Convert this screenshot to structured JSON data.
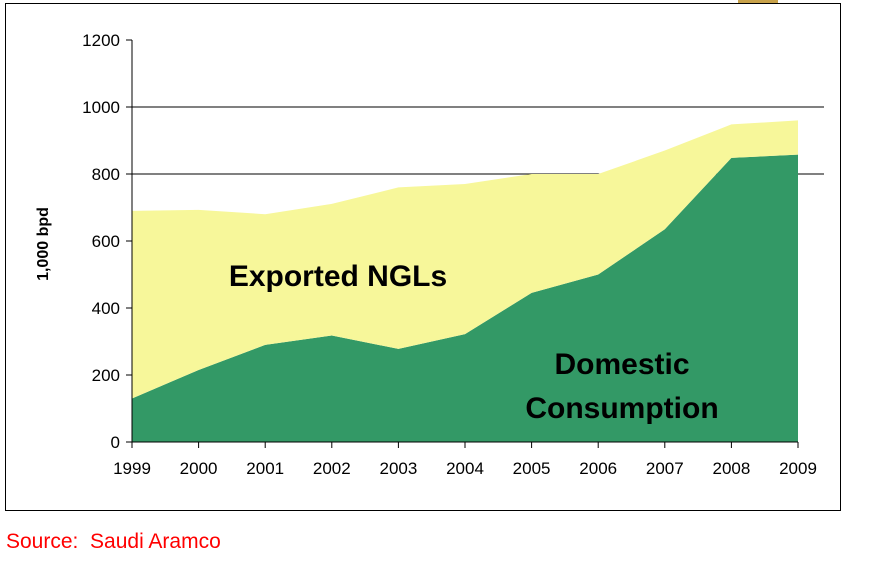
{
  "chart_data": {
    "type": "area",
    "stacked": true,
    "x": [
      1999,
      2000,
      2001,
      2002,
      2003,
      2004,
      2005,
      2006,
      2007,
      2008,
      2009
    ],
    "series": [
      {
        "name": "Domestic Consumption",
        "values": [
          130,
          215,
          290,
          318,
          278,
          322,
          445,
          500,
          635,
          848,
          858
        ],
        "color": "#339966"
      },
      {
        "name": "Exported NGLs",
        "values": [
          560,
          478,
          390,
          393,
          482,
          448,
          355,
          300,
          235,
          100,
          102
        ],
        "color": "#f7f79a"
      }
    ],
    "totals": [
      690,
      693,
      680,
      711,
      760,
      770,
      800,
      800,
      870,
      948,
      960
    ],
    "series_labels": {
      "exported": "Exported NGLs",
      "domestic_line1": "Domestic",
      "domestic_line2": "Consumption"
    },
    "ylabel": "1,000 bpd",
    "xlabel": "",
    "ylim": [
      0,
      1200
    ],
    "yticks": [
      0,
      200,
      400,
      600,
      800,
      1000,
      1200
    ],
    "xtick_labels": [
      "1999",
      "2000",
      "2001",
      "2002",
      "2003",
      "2004",
      "2005",
      "2006",
      "2007",
      "2008",
      "2009"
    ],
    "ytick_labels": [
      "0",
      "200",
      "400",
      "600",
      "800",
      "1000",
      "1200"
    ],
    "gridlines_at": [
      800,
      1000
    ],
    "grid": true
  },
  "source": "Source:  Saudi Aramco"
}
